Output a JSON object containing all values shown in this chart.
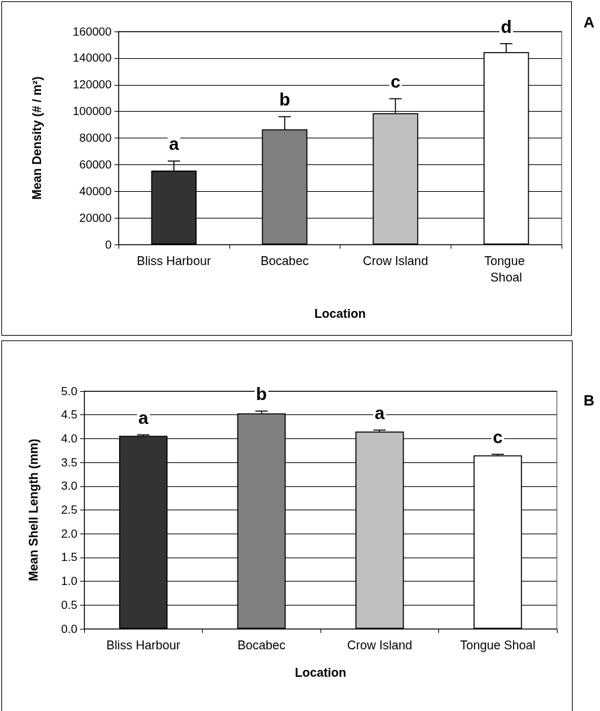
{
  "chart_data": [
    {
      "type": "bar",
      "ylabel": "Mean Density (# / m²)",
      "xlabel": "Location",
      "categories": [
        "Bliss Harbour",
        "Bocabec",
        "Crow Island",
        "Tongue Shoal"
      ],
      "values": [
        55600,
        86500,
        98700,
        144600
      ],
      "colors": [
        "#333333",
        "#808080",
        "#c0c0c0",
        "#ffffff"
      ],
      "errors": [
        [
          55600,
          62700
        ],
        [
          86500,
          96000
        ],
        [
          98700,
          109500
        ],
        [
          144600,
          150900
        ]
      ],
      "ylim": [
        0,
        160000
      ],
      "yticks": [
        0,
        20000,
        40000,
        60000,
        80000,
        100000,
        120000,
        140000,
        160000
      ],
      "grid": "y",
      "annotations": [
        "a",
        "b",
        "c",
        "d",
        "A"
      ]
    },
    {
      "type": "bar",
      "ylabel": "Mean Shell Length (mm)",
      "xlabel": "Location",
      "categories": [
        "Bliss Harbour",
        "Bocabec",
        "Crow Island",
        "Tongue Shoal"
      ],
      "values": [
        4.06,
        4.53,
        4.15,
        3.65
      ],
      "colors": [
        "#333333",
        "#808080",
        "#c0c0c0",
        "#ffffff"
      ],
      "errors": [
        [
          4.06,
          4.08
        ],
        [
          4.53,
          4.58
        ],
        [
          4.15,
          4.18
        ],
        [
          3.65,
          3.67
        ]
      ],
      "ylim": [
        0,
        5
      ],
      "yticks": [
        {
          "value": 0,
          "label": "0.0"
        },
        {
          "value": 0.5,
          "label": "0.5"
        },
        {
          "value": 1,
          "label": "1.0"
        },
        {
          "value": 1.5,
          "label": "1.5"
        },
        {
          "value": 2,
          "label": "2.0"
        },
        {
          "value": 2.5,
          "label": "2.5"
        },
        {
          "value": 3,
          "label": "3.0"
        },
        {
          "value": 3.5,
          "label": "3.5"
        },
        {
          "value": 4,
          "label": "4.0"
        },
        {
          "value": 4.5,
          "label": "4.5"
        },
        {
          "value": 5,
          "label": "5.0"
        }
      ],
      "grid": "y",
      "annotations": [
        "a",
        "b",
        "a",
        "c",
        "B"
      ]
    }
  ]
}
